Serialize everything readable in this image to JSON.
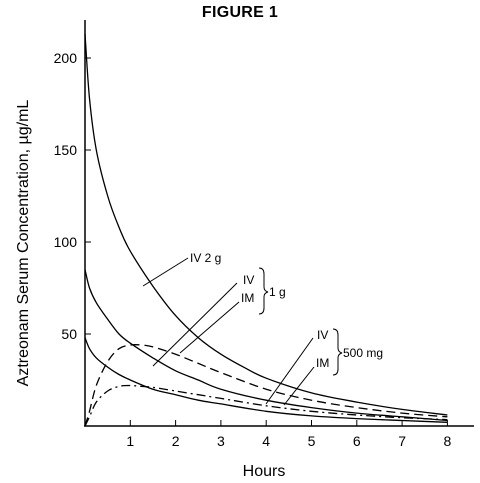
{
  "figure_title": "FIGURE 1",
  "chart_data": {
    "type": "line",
    "title": "FIGURE 1",
    "xlabel": "Hours",
    "ylabel": "Aztreonam Serum Concentration, µg/mL",
    "xlim": [
      0,
      8.5
    ],
    "ylim": [
      0,
      215
    ],
    "x_ticks": [
      1,
      2,
      3,
      4,
      5,
      6,
      7,
      8
    ],
    "y_ticks": [
      50,
      100,
      150,
      200
    ],
    "grid": false,
    "legend": "none",
    "series": [
      {
        "name": "IV 2 g",
        "dose": "2 g",
        "route": "IV",
        "style": "solid",
        "x": [
          0,
          0.1,
          0.25,
          0.5,
          0.75,
          1,
          1.5,
          2,
          2.5,
          3,
          3.5,
          4,
          5,
          6,
          7,
          8
        ],
        "y": [
          213,
          178,
          150,
          125,
          108,
          95,
          76,
          60,
          48,
          39,
          32,
          26,
          18,
          13,
          9,
          6
        ]
      },
      {
        "name": "IV",
        "dose": "1 g",
        "route": "IV",
        "style": "solid",
        "x": [
          0,
          0.1,
          0.25,
          0.5,
          0.75,
          1,
          1.5,
          2,
          2.5,
          3,
          4,
          5,
          6,
          7,
          8
        ],
        "y": [
          85,
          75,
          67,
          58,
          50,
          45,
          37,
          30,
          25,
          20,
          14,
          10,
          7,
          5,
          3
        ]
      },
      {
        "name": "IM",
        "dose": "1 g",
        "route": "IM",
        "style": "dashed",
        "x": [
          0,
          0.1,
          0.25,
          0.5,
          0.75,
          1,
          1.25,
          1.5,
          2,
          2.5,
          3,
          4,
          5,
          6,
          7,
          8
        ],
        "y": [
          0,
          8,
          22,
          35,
          42,
          44,
          44,
          43,
          39,
          34,
          29,
          20,
          14,
          10,
          7,
          5
        ]
      },
      {
        "name": "IV",
        "dose": "500 mg",
        "route": "IV",
        "style": "solid",
        "x": [
          0,
          0.1,
          0.25,
          0.5,
          0.75,
          1,
          1.5,
          2,
          2.5,
          3,
          4,
          5,
          6,
          7,
          8
        ],
        "y": [
          48,
          42,
          37,
          32,
          28,
          25,
          20,
          17,
          14,
          12,
          8,
          5.5,
          4,
          3,
          2
        ]
      },
      {
        "name": "IM",
        "dose": "500 mg",
        "route": "IM",
        "style": "dash-dot",
        "x": [
          0,
          0.1,
          0.25,
          0.5,
          0.75,
          1,
          1.25,
          1.5,
          2,
          2.5,
          3,
          4,
          5,
          6,
          7,
          8
        ],
        "y": [
          0,
          5,
          13,
          19,
          21.5,
          22,
          21.5,
          21,
          19,
          17,
          15,
          11,
          8,
          6,
          4.5,
          3.5
        ]
      }
    ],
    "annotations": [
      {
        "text": "IV 2 g",
        "series": 0
      },
      {
        "text": "IV",
        "series": 1
      },
      {
        "text": "IM",
        "series": 2
      },
      {
        "text": "1 g",
        "group": [
          1,
          2
        ]
      },
      {
        "text": "IV",
        "series": 3
      },
      {
        "text": "IM",
        "series": 4
      },
      {
        "text": "500 mg",
        "group": [
          3,
          4
        ]
      }
    ]
  }
}
